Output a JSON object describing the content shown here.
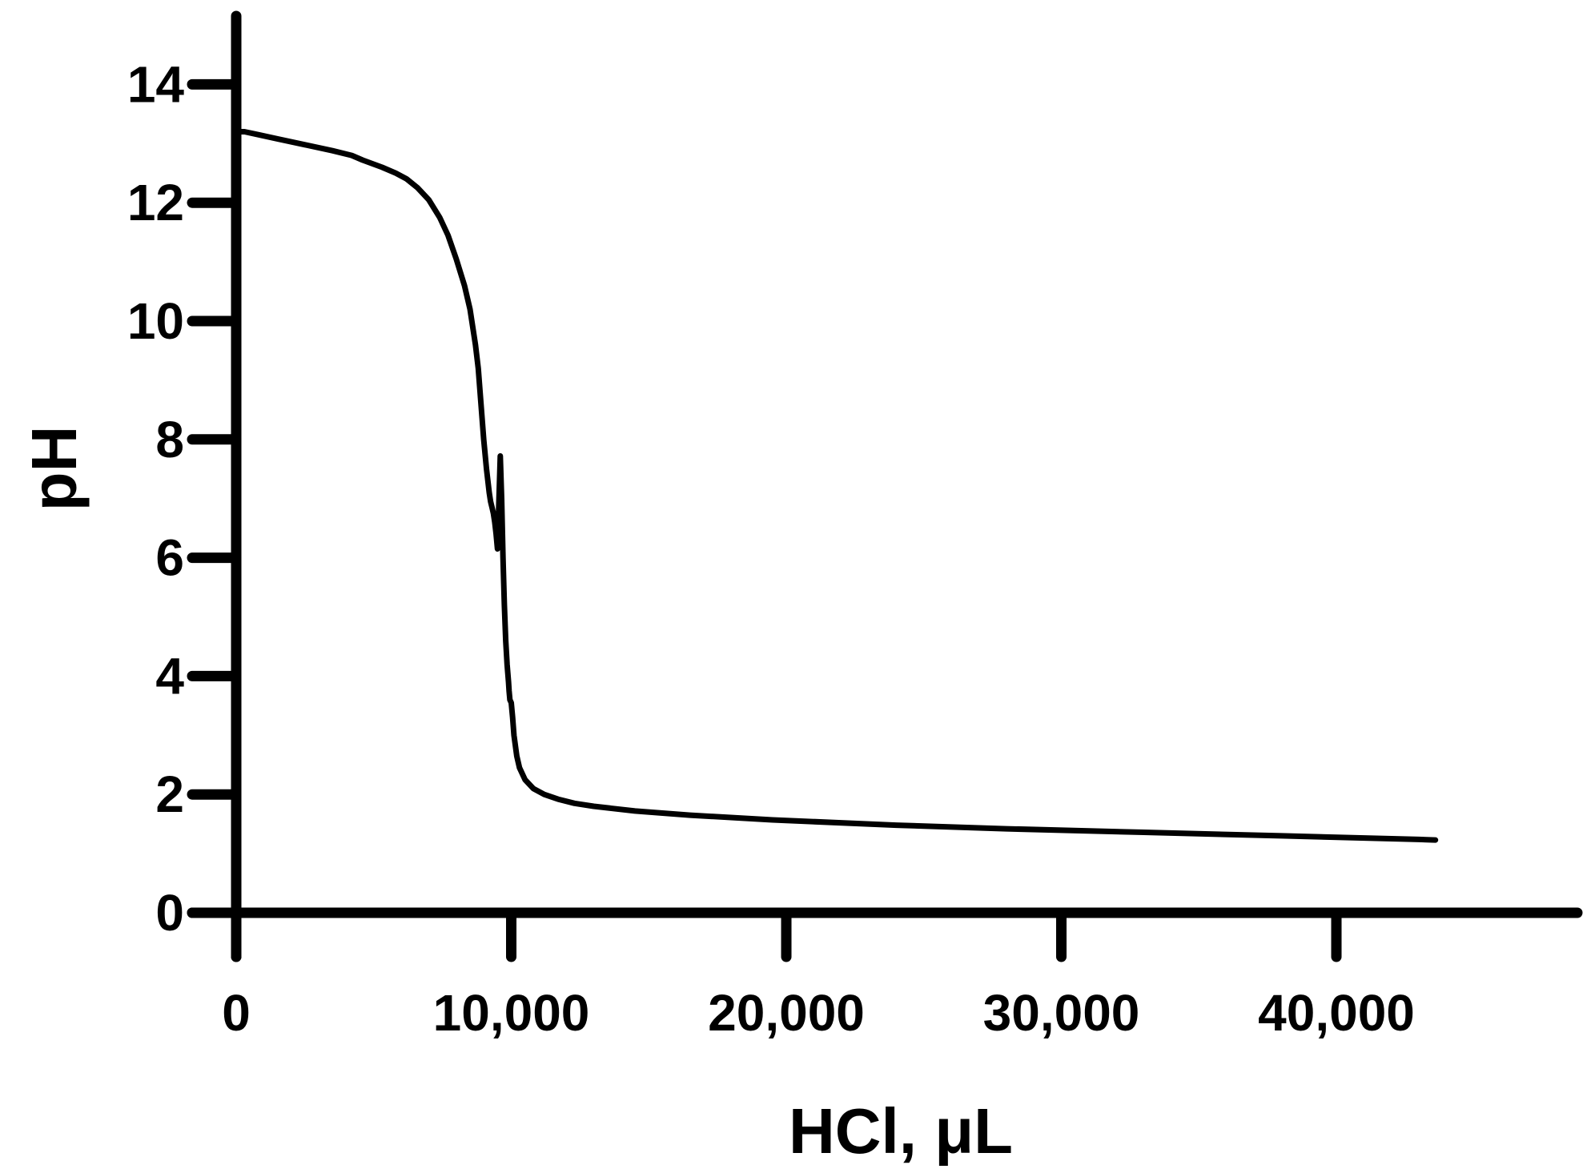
{
  "chart_data": {
    "type": "line",
    "xlabel": "HCl, μL",
    "ylabel": "pH",
    "xlim": [
      0,
      48500
    ],
    "ylim": [
      0,
      15
    ],
    "x_ticks": [
      0,
      10000,
      20000,
      30000,
      40000
    ],
    "x_tick_labels": [
      "0",
      "10,000",
      "20,000",
      "30,000",
      "40,000"
    ],
    "y_ticks": [
      0,
      2,
      4,
      6,
      8,
      10,
      12,
      14
    ],
    "y_tick_labels": [
      "0",
      "2",
      "4",
      "6",
      "8",
      "10",
      "12",
      "14"
    ],
    "grid": false,
    "legend": "none",
    "colors": {
      "line": "#000000",
      "axis": "#000000",
      "background": "#ffffff"
    },
    "series": [
      {
        "x": [
          0,
          300,
          800,
          1500,
          2500,
          3500,
          4200,
          4600,
          5300,
          5800,
          6200,
          6600,
          7000,
          7400,
          7700,
          8000,
          8300,
          8500,
          8700,
          8800,
          8900,
          9000,
          9100,
          9150,
          9200,
          9250,
          9300,
          9350,
          9400,
          9450,
          9500,
          9600,
          9650,
          9700,
          9750,
          9800,
          9850,
          9900,
          9920,
          9950,
          10000,
          10050,
          10100,
          10200,
          10300,
          10500,
          10800,
          11200,
          11700,
          12300,
          13000,
          14500,
          16500,
          19500,
          24000,
          28000,
          33000,
          38000,
          43000,
          43600
        ],
        "y": [
          13.2,
          13.2,
          13.15,
          13.08,
          12.98,
          12.88,
          12.8,
          12.72,
          12.6,
          12.5,
          12.4,
          12.25,
          12.05,
          11.75,
          11.45,
          11.05,
          10.6,
          10.2,
          9.6,
          9.2,
          8.6,
          8.0,
          7.5,
          7.3,
          7.1,
          6.95,
          6.85,
          6.75,
          6.6,
          6.4,
          6.15,
          7.72,
          7.0,
          6.0,
          5.2,
          4.6,
          4.2,
          3.9,
          3.75,
          3.6,
          3.55,
          3.3,
          3.0,
          2.65,
          2.45,
          2.25,
          2.1,
          2.0,
          1.92,
          1.85,
          1.8,
          1.72,
          1.65,
          1.57,
          1.48,
          1.42,
          1.36,
          1.3,
          1.24,
          1.23
        ]
      }
    ]
  }
}
